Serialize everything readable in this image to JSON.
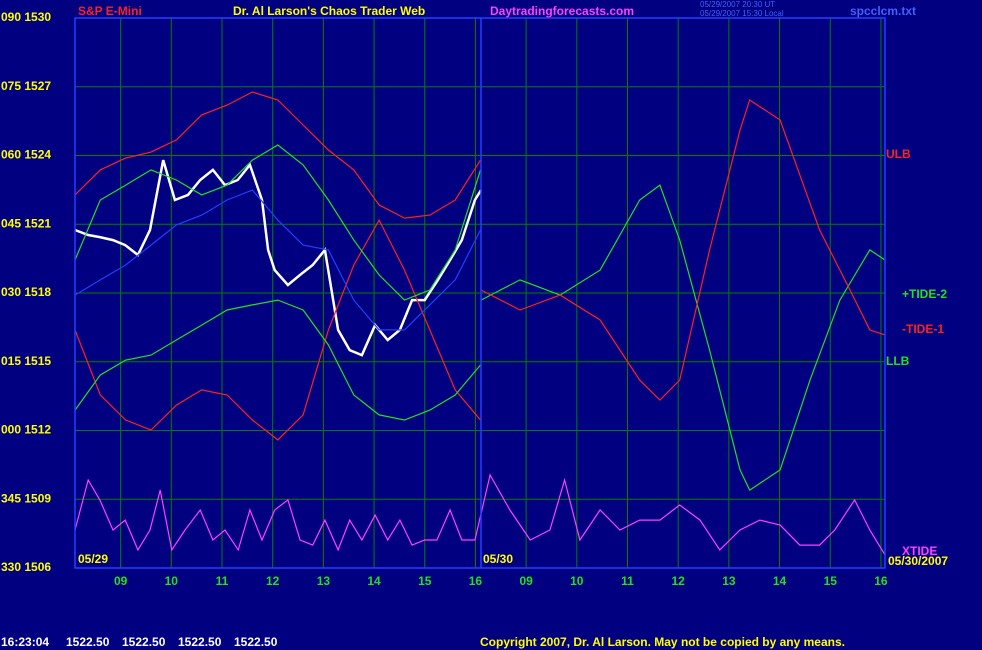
{
  "chart_data": {
    "type": "line",
    "symbol": "S&P E-Mini",
    "title": "Dr. Al Larson's Chaos Trader Web",
    "site": "Daytradingforecasts.com",
    "timestamps": [
      "05/29/2007 20:30 UT",
      "05/29/2007 15:30 Local"
    ],
    "file": "spcclcm.txt",
    "day_labels": [
      "05/29",
      "05/30"
    ],
    "date": "05/30/2007",
    "status_time": "16:23:04",
    "status_quotes": [
      "1522.50",
      "1522.50",
      "1522.50",
      "1522.50"
    ],
    "copyright": "Copyright 2007, Dr. Al Larson. May not be copied by any means.",
    "grid": true,
    "grid_color": "#008000",
    "background": "#000080",
    "xlim": [
      8.1,
      24.08
    ],
    "ylim": [
      1506,
      1530
    ],
    "xticks": [
      {
        "value": 9,
        "label": "09"
      },
      10,
      11,
      12,
      13,
      14,
      15,
      16,
      {
        "value": 17,
        "label": "09"
      },
      {
        "value": 18,
        "label": "10"
      },
      {
        "value": 19,
        "label": "11"
      },
      {
        "value": 20,
        "label": "12"
      },
      {
        "value": 21,
        "label": "13"
      },
      {
        "value": 22,
        "label": "14"
      },
      {
        "value": 23,
        "label": "15"
      },
      {
        "value": 24,
        "label": "16"
      }
    ],
    "yticks": [
      {
        "value": 1530,
        "label": "090 1530"
      },
      {
        "value": 1527,
        "label": "075 1527"
      },
      {
        "value": 1524,
        "label": "060 1524"
      },
      {
        "value": 1521,
        "label": "045 1521"
      },
      {
        "value": 1518,
        "label": "030 1518"
      },
      {
        "value": 1515,
        "label": "015 1515"
      },
      {
        "value": 1512,
        "label": "000 1512"
      },
      {
        "value": 1509,
        "label": "345 1509"
      },
      {
        "value": 1506,
        "label": "330 1506"
      }
    ],
    "series": [
      {
        "color": "#ffffff",
        "x": [
          8.1,
          8.36,
          8.59,
          8.85,
          9.09,
          9.34,
          9.58,
          9.84,
          10.07,
          10.33,
          10.57,
          10.82,
          11.06,
          11.31,
          11.55,
          11.79,
          11.91,
          12.04,
          12.3,
          12.54,
          12.79,
          13.03,
          13.29,
          13.52,
          13.76,
          14.02,
          14.27,
          14.51,
          14.75,
          15.0,
          15.26,
          15.5,
          15.73,
          15.99,
          16.11
        ],
        "values": [
          1520.75,
          1520.53,
          1520.44,
          1520.31,
          1520.09,
          1519.66,
          1520.75,
          1523.8,
          1522.06,
          1522.28,
          1522.93,
          1523.37,
          1522.71,
          1522.93,
          1523.59,
          1522.06,
          1519.88,
          1519.0,
          1518.35,
          1518.79,
          1519.22,
          1519.88,
          1516.39,
          1515.51,
          1515.29,
          1516.6,
          1515.95,
          1516.39,
          1517.69,
          1517.69,
          1518.57,
          1519.44,
          1520.31,
          1522.06,
          1522.49
        ]
      },
      {
        "name": "ULB",
        "color": "#ff2020",
        "x": [
          8.1,
          8.6,
          9.1,
          9.6,
          10.1,
          10.6,
          11.1,
          11.6,
          12.1,
          12.6,
          13.1,
          13.6,
          14.1,
          14.6,
          15.1,
          15.6,
          16.1
        ],
        "values": [
          1522.28,
          1523.37,
          1523.89,
          1524.15,
          1524.68,
          1525.77,
          1526.2,
          1526.77,
          1526.42,
          1525.33,
          1524.24,
          1523.37,
          1521.84,
          1521.27,
          1521.4,
          1522.06,
          1523.8
        ]
      },
      {
        "color": "#ff2020",
        "x": [
          8.1,
          8.6,
          9.1,
          9.6,
          10.1,
          10.6,
          11.1,
          11.6,
          12.1,
          12.6,
          13.1,
          13.6,
          14.1,
          14.6,
          15.1,
          15.6,
          16.1
        ],
        "values": [
          1516.39,
          1513.55,
          1512.46,
          1512.02,
          1513.11,
          1513.77,
          1513.55,
          1512.46,
          1511.59,
          1512.68,
          1516.39,
          1519.22,
          1521.18,
          1519.0,
          1516.39,
          1513.77,
          1512.46
        ]
      },
      {
        "color": "#20e020",
        "x": [
          8.1,
          8.6,
          9.1,
          9.6,
          10.1,
          10.6,
          11.1,
          11.6,
          12.1,
          12.6,
          13.1,
          13.6,
          14.1,
          14.6,
          15.1,
          15.6,
          16.1
        ],
        "values": [
          1519.44,
          1522.06,
          1522.71,
          1523.37,
          1522.93,
          1522.28,
          1522.71,
          1523.8,
          1524.46,
          1523.59,
          1522.06,
          1520.31,
          1518.79,
          1517.69,
          1518.13,
          1519.88,
          1523.37
        ]
      },
      {
        "name": "LLB",
        "color": "#20e020",
        "x": [
          8.1,
          8.6,
          9.1,
          9.6,
          10.1,
          10.6,
          11.1,
          11.6,
          12.1,
          12.6,
          13.1,
          13.6,
          14.1,
          14.6,
          15.1,
          15.6,
          16.1
        ],
        "values": [
          1512.89,
          1514.42,
          1515.07,
          1515.29,
          1515.95,
          1516.6,
          1517.26,
          1517.48,
          1517.69,
          1517.26,
          1515.73,
          1513.55,
          1512.68,
          1512.46,
          1512.89,
          1513.55,
          1514.86
        ]
      },
      {
        "color": "#2040ff",
        "x": [
          8.1,
          8.6,
          9.1,
          9.6,
          10.1,
          10.6,
          11.1,
          11.6,
          12.1,
          12.6,
          13.1,
          13.6,
          14.1,
          14.6,
          15.1,
          15.6,
          16.1
        ],
        "values": [
          1517.91,
          1518.57,
          1519.22,
          1520.09,
          1520.97,
          1521.4,
          1522.06,
          1522.49,
          1521.18,
          1520.09,
          1519.88,
          1517.69,
          1516.39,
          1516.39,
          1517.48,
          1518.57,
          1520.75
        ]
      },
      {
        "name": "+TIDE-2",
        "color": "#20e020",
        "x": [
          16.11,
          16.88,
          17.67,
          18.46,
          19.24,
          19.64,
          20.03,
          20.62,
          21.22,
          21.41,
          22.01,
          22.6,
          23.19,
          23.78,
          24.08
        ],
        "values": [
          1517.69,
          1518.57,
          1517.91,
          1519.0,
          1522.06,
          1522.71,
          1520.31,
          1515.51,
          1510.28,
          1509.4,
          1510.28,
          1514.2,
          1517.69,
          1519.88,
          1519.44
        ]
      },
      {
        "name": "-TIDE-1",
        "color": "#ff2020",
        "x": [
          16.11,
          16.88,
          17.67,
          18.46,
          19.24,
          19.64,
          20.03,
          20.62,
          21.22,
          21.41,
          22.01,
          22.79,
          23.39,
          23.78,
          24.08
        ],
        "values": [
          1518.13,
          1517.26,
          1517.91,
          1516.82,
          1514.2,
          1513.33,
          1514.2,
          1519.88,
          1525.11,
          1526.42,
          1525.55,
          1520.75,
          1518.13,
          1516.39,
          1516.17
        ]
      },
      {
        "name": "XTIDE",
        "color": "#ff40ff",
        "x": [
          8.1,
          8.36,
          8.59,
          8.85,
          9.09,
          9.34,
          9.58,
          9.78,
          10.01,
          10.27,
          10.57,
          10.82,
          11.06,
          11.32,
          11.55,
          11.79,
          12.04,
          12.3,
          12.54,
          12.79,
          13.03,
          13.29,
          13.52,
          13.76,
          14.02,
          14.27,
          14.51,
          14.75,
          15.0,
          15.24,
          15.5,
          15.73,
          15.99,
          16.29,
          16.68,
          17.08,
          17.47,
          17.76,
          18.06,
          18.46,
          18.85,
          19.24,
          19.64,
          20.03,
          20.43,
          20.82,
          21.22,
          21.61,
          22.01,
          22.4,
          22.79,
          23.09,
          23.48,
          23.78,
          24.08
        ],
        "values": [
          1507.66,
          1509.84,
          1508.97,
          1507.66,
          1508.09,
          1506.79,
          1507.66,
          1509.4,
          1506.79,
          1507.66,
          1508.53,
          1507.22,
          1507.66,
          1506.79,
          1508.53,
          1507.22,
          1508.53,
          1508.97,
          1507.22,
          1507.0,
          1508.09,
          1506.79,
          1508.09,
          1507.22,
          1508.31,
          1507.22,
          1508.09,
          1507.0,
          1507.22,
          1507.22,
          1508.53,
          1507.22,
          1507.22,
          1510.06,
          1508.53,
          1507.22,
          1507.66,
          1509.84,
          1507.22,
          1508.53,
          1507.66,
          1508.09,
          1508.09,
          1508.75,
          1508.09,
          1506.79,
          1507.66,
          1508.09,
          1507.87,
          1507.0,
          1507.0,
          1507.66,
          1508.97,
          1507.66,
          1506.57
        ]
      }
    ]
  }
}
